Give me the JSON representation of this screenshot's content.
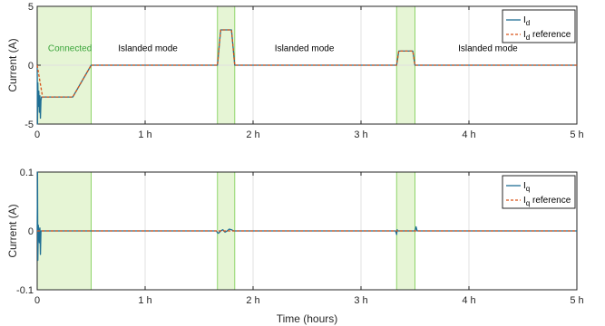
{
  "chart_data": [
    {
      "type": "line",
      "ylabel": "Current (A)",
      "xlabel": "",
      "xlim": [
        0,
        5
      ],
      "ylim": [
        -5,
        5
      ],
      "yticks": [
        "5",
        "0",
        "-5"
      ],
      "xticks": [
        "0",
        "1 h",
        "2 h",
        "3 h",
        "4 h",
        "5 h"
      ],
      "grid": true,
      "legend_position": "top-right",
      "legend": [
        {
          "main": "I",
          "sub": "d"
        },
        {
          "main": "I",
          "sub": "d",
          "suffix": " reference"
        }
      ],
      "shaded_regions": [
        [
          0,
          0.5
        ],
        [
          1.67,
          1.83
        ],
        [
          3.33,
          3.5
        ]
      ],
      "annotations": [
        {
          "text": "Connected",
          "x": 0.1,
          "y": 1.2,
          "color": "green"
        },
        {
          "text": "Islanded mode",
          "x": 0.75,
          "y": 1.2
        },
        {
          "text": "Islanded mode",
          "x": 2.2,
          "y": 1.2
        },
        {
          "text": "Islanded mode",
          "x": 3.9,
          "y": 1.2
        }
      ],
      "series": [
        {
          "key": "id",
          "color": "#1f6e94",
          "dash": "solid",
          "x": [
            0,
            0.003,
            0.006,
            0.01,
            0.015,
            0.02,
            0.025,
            0.03,
            0.035,
            0.04,
            0.05,
            0.1,
            0.2,
            0.33,
            0.5,
            1.67,
            1.7,
            1.72,
            1.78,
            1.8,
            1.83,
            3.33,
            3.35,
            3.48,
            3.5,
            5
          ],
          "values": [
            0,
            -5,
            -1.5,
            -3.5,
            -2.2,
            -4.0,
            -2.6,
            -4.5,
            -3.0,
            -2.7,
            -2.7,
            -2.7,
            -2.7,
            -2.7,
            0,
            0,
            3.0,
            3.0,
            3.0,
            3.0,
            0,
            0,
            1.2,
            1.2,
            0,
            0
          ]
        },
        {
          "key": "id_ref",
          "color": "#d95319",
          "dash": "dashed",
          "x": [
            0,
            0.05,
            0.33,
            0.5,
            1.67,
            1.7,
            1.78,
            1.8,
            1.83,
            3.33,
            3.35,
            3.48,
            3.5,
            5
          ],
          "values": [
            0,
            -2.7,
            -2.7,
            0,
            0,
            3.0,
            3.0,
            3.0,
            0,
            0,
            1.2,
            1.2,
            0,
            0
          ]
        }
      ]
    },
    {
      "type": "line",
      "ylabel": "Current (A)",
      "xlabel": "Time (hours)",
      "xlim": [
        0,
        5
      ],
      "ylim": [
        -0.1,
        0.1
      ],
      "yticks": [
        "0.1",
        "0",
        "-0.1"
      ],
      "xticks": [
        "0",
        "1 h",
        "2 h",
        "3 h",
        "4 h",
        "5 h"
      ],
      "grid": true,
      "legend_position": "top-right",
      "legend": [
        {
          "main": "I",
          "sub": "q"
        },
        {
          "main": "I",
          "sub": "q",
          "suffix": " reference"
        }
      ],
      "shaded_regions": [
        [
          0,
          0.5
        ],
        [
          1.67,
          1.83
        ],
        [
          3.33,
          3.5
        ]
      ],
      "annotations": [],
      "series": [
        {
          "key": "iq",
          "color": "#1f6e94",
          "dash": "solid",
          "x": [
            0,
            0.003,
            0.006,
            0.01,
            0.015,
            0.02,
            0.025,
            0.03,
            0.035,
            0.04,
            0.05,
            1.66,
            1.67,
            1.68,
            1.7,
            1.72,
            1.74,
            1.76,
            1.78,
            1.8,
            1.82,
            1.84,
            3.32,
            3.33,
            3.335,
            3.34,
            3.5,
            3.51,
            3.52,
            5
          ],
          "values": [
            0,
            0.1,
            -0.05,
            0.01,
            0.0,
            -0.02,
            0.005,
            -0.04,
            0.0,
            0.0,
            0,
            0,
            -0.003,
            -0.004,
            0,
            0.002,
            -0.002,
            0,
            0.003,
            0.002,
            0,
            0,
            0,
            -0.006,
            0.002,
            0,
            0,
            0.007,
            0,
            0
          ]
        },
        {
          "key": "iq_ref",
          "color": "#d95319",
          "dash": "dashed",
          "x": [
            0,
            5
          ],
          "values": [
            0,
            0
          ]
        }
      ]
    }
  ]
}
